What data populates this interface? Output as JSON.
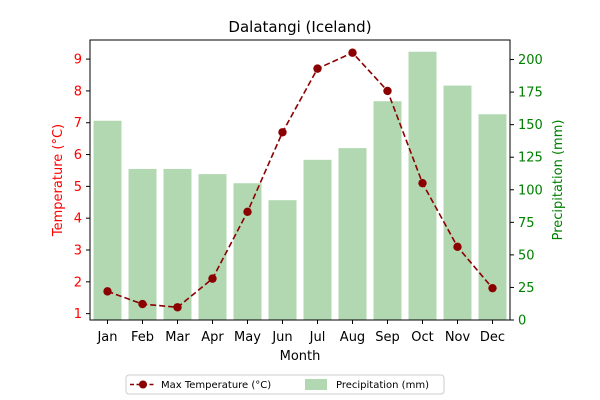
{
  "chart_data": {
    "type": "bar+line",
    "title": "Dalatangi (Iceland)",
    "xlabel": "Month",
    "categories": [
      "Jan",
      "Feb",
      "Mar",
      "Apr",
      "May",
      "Jun",
      "Jul",
      "Aug",
      "Sep",
      "Oct",
      "Nov",
      "Dec"
    ],
    "y_left": {
      "label": "Temperature (°C)",
      "range": [
        0.8,
        9.6
      ],
      "ticks": [
        1,
        2,
        3,
        4,
        5,
        6,
        7,
        8,
        9
      ],
      "color": "#ff0000"
    },
    "y_right": {
      "label": "Precipitation (mm)",
      "range": [
        0,
        215
      ],
      "ticks": [
        0,
        25,
        50,
        75,
        100,
        125,
        150,
        175,
        200
      ],
      "color": "#008000"
    },
    "series": [
      {
        "name": "Max Temperature (°C)",
        "type": "line",
        "axis": "left",
        "style": "dashed",
        "color": "#8b0000",
        "values": [
          1.7,
          1.3,
          1.2,
          2.1,
          4.2,
          6.7,
          8.7,
          9.2,
          8.0,
          5.1,
          3.1,
          1.8
        ]
      },
      {
        "name": "Precipitation (mm)",
        "type": "bar",
        "axis": "right",
        "color": "#b2d8b2",
        "values": [
          153,
          116,
          116,
          112,
          105,
          92,
          123,
          132,
          168,
          206,
          180,
          158
        ]
      }
    ],
    "legend": {
      "placement": "bottom-center"
    },
    "grid": false
  }
}
